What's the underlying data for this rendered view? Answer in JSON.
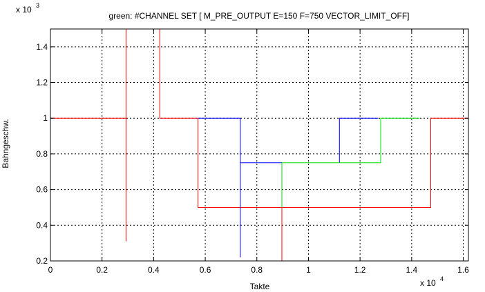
{
  "chart_data": {
    "type": "line",
    "title": "green: #CHANNEL SET [ M_PRE_OUTPUT E=150 F=750 VECTOR_LIMIT_OFF]",
    "xlabel": "Takte",
    "ylabel": "Bahngeschw.",
    "x_multiplier_label": "x 10",
    "x_multiplier_exp": "4",
    "y_multiplier_label": "x 10",
    "y_multiplier_exp": "3",
    "xlim": [
      0,
      1.62
    ],
    "ylim": [
      0.2,
      1.5
    ],
    "xticks": [
      0,
      0.2,
      0.4,
      0.6,
      0.8,
      1,
      1.2,
      1.4,
      1.6
    ],
    "xtick_labels": [
      "0",
      "0.2",
      "0.4",
      "0.6",
      "0.8",
      "1",
      "1.2",
      "1.4",
      "1.6"
    ],
    "yticks": [
      0.2,
      0.4,
      0.6,
      0.8,
      1,
      1.2,
      1.4
    ],
    "ytick_labels": [
      "0.2",
      "0.4",
      "0.6",
      "0.8",
      "1",
      "1.2",
      "1.4"
    ],
    "grid": true,
    "series": [
      {
        "color": "#ff0000",
        "x": [
          0,
          0,
          0.293,
          0.293,
          0.293,
          0.293,
          0.298,
          0.298,
          0.424,
          0.424,
          0.572,
          0.572,
          1.474,
          1.474,
          1.62
        ],
        "y": [
          0.2,
          1,
          1,
          0.31,
          1.03,
          1.5,
          1.5,
          1.5,
          1.5,
          1,
          1,
          0.5,
          0.5,
          1,
          1
        ]
      },
      {
        "color": "#ff0000",
        "x": [
          0.897,
          0.897
        ],
        "y": [
          0.5,
          0.2
        ]
      },
      {
        "color": "#0000ff",
        "x": [
          0.572,
          0.736,
          0.736,
          0.736,
          0.736,
          0.897,
          0.897
        ],
        "y": [
          1,
          1,
          0.22,
          1,
          0.75,
          0.75,
          0.75
        ]
      },
      {
        "color": "#0000ff",
        "x": [
          1.12,
          1.12,
          1.12,
          1.27
        ],
        "y": [
          0.75,
          1,
          1,
          1
        ]
      },
      {
        "color": "#00dd00",
        "x": [
          0.897,
          0.897,
          1.12,
          1.28,
          1.28,
          1.43
        ],
        "y": [
          0.5,
          0.75,
          0.75,
          0.75,
          1,
          1
        ]
      }
    ]
  }
}
